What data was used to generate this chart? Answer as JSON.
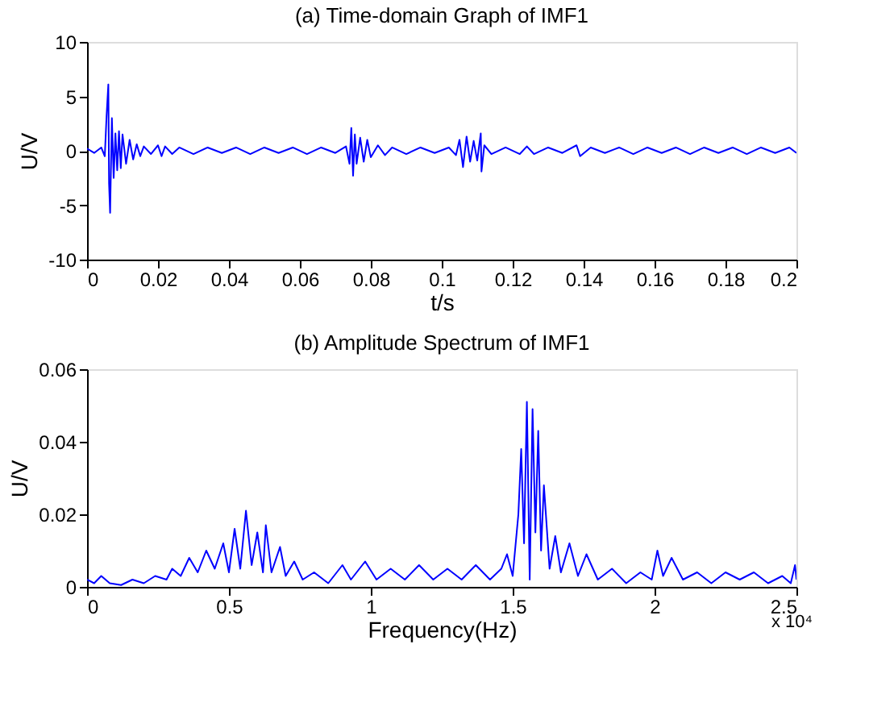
{
  "chart_data": [
    {
      "type": "line",
      "title": "(a) Time-domain Graph of IMF1",
      "xlabel": "t/s",
      "ylabel": "U/V",
      "xlim": [
        0,
        0.2
      ],
      "xticks": [
        0,
        0.02,
        0.04,
        0.06,
        0.08,
        0.1,
        0.12,
        0.14,
        0.16,
        0.18,
        0.2
      ],
      "ylim": [
        -10,
        10
      ],
      "yticks": [
        -10,
        -5,
        0,
        5,
        10
      ],
      "grid": false,
      "x": [
        0,
        0.002,
        0.004,
        0.005,
        0.0055,
        0.006,
        0.0062,
        0.0065,
        0.007,
        0.0075,
        0.008,
        0.0085,
        0.009,
        0.0095,
        0.01,
        0.011,
        0.012,
        0.013,
        0.014,
        0.015,
        0.016,
        0.018,
        0.02,
        0.021,
        0.022,
        0.024,
        0.026,
        0.03,
        0.034,
        0.038,
        0.042,
        0.046,
        0.05,
        0.054,
        0.058,
        0.062,
        0.066,
        0.07,
        0.073,
        0.074,
        0.0745,
        0.075,
        0.0755,
        0.076,
        0.077,
        0.078,
        0.079,
        0.08,
        0.082,
        0.084,
        0.086,
        0.09,
        0.094,
        0.098,
        0.102,
        0.104,
        0.105,
        0.106,
        0.107,
        0.108,
        0.109,
        0.11,
        0.111,
        0.1112,
        0.112,
        0.114,
        0.118,
        0.122,
        0.124,
        0.126,
        0.13,
        0.134,
        0.138,
        0.139,
        0.142,
        0.146,
        0.15,
        0.154,
        0.158,
        0.162,
        0.166,
        0.17,
        0.174,
        0.178,
        0.182,
        0.186,
        0.19,
        0.194,
        0.198,
        0.2
      ],
      "series": [
        {
          "color": "#0000ff",
          "values": [
            0.2,
            -0.2,
            0.3,
            -0.5,
            3.2,
            6.1,
            -3,
            -5.7,
            3,
            -2.5,
            1.6,
            -1.8,
            1.8,
            -1.6,
            1.5,
            -1.2,
            1.0,
            -0.8,
            0.6,
            -0.5,
            0.4,
            -0.3,
            0.5,
            -0.5,
            0.4,
            -0.3,
            0.3,
            -0.3,
            0.3,
            -0.2,
            0.3,
            -0.3,
            0.3,
            -0.2,
            0.3,
            -0.3,
            0.3,
            -0.2,
            0.4,
            -1.2,
            2.1,
            -2.3,
            1.5,
            -1.2,
            1.2,
            -1,
            1.0,
            -0.6,
            0.5,
            -0.4,
            0.3,
            -0.3,
            0.3,
            -0.2,
            0.3,
            -0.4,
            1.0,
            -1.5,
            1.3,
            -1.0,
            0.9,
            -0.9,
            1.6,
            -1.9,
            0.5,
            -0.3,
            0.3,
            -0.3,
            0.4,
            -0.3,
            0.3,
            -0.2,
            0.5,
            -0.5,
            0.3,
            -0.2,
            0.3,
            -0.3,
            0.3,
            -0.2,
            0.3,
            -0.3,
            0.3,
            -0.2,
            0.3,
            -0.3,
            0.3,
            -0.2,
            0.3,
            -0.2
          ]
        }
      ]
    },
    {
      "type": "line",
      "title": "(b) Amplitude Spectrum of IMF1",
      "xlabel": "Frequency(Hz)",
      "ylabel": "U/V",
      "xlim": [
        0,
        2.5
      ],
      "xticks": [
        0,
        0.5,
        1,
        1.5,
        2,
        2.5
      ],
      "ylim": [
        0,
        0.06
      ],
      "yticks": [
        0,
        0.02,
        0.04,
        0.06
      ],
      "grid": false,
      "annotations": [
        "x 10⁴"
      ],
      "x": [
        0,
        0.025,
        0.05,
        0.08,
        0.12,
        0.16,
        0.2,
        0.24,
        0.28,
        0.3,
        0.33,
        0.36,
        0.39,
        0.42,
        0.45,
        0.48,
        0.5,
        0.52,
        0.54,
        0.56,
        0.58,
        0.6,
        0.62,
        0.63,
        0.65,
        0.68,
        0.7,
        0.73,
        0.76,
        0.8,
        0.85,
        0.9,
        0.93,
        0.98,
        1.02,
        1.07,
        1.12,
        1.17,
        1.22,
        1.27,
        1.32,
        1.37,
        1.42,
        1.46,
        1.48,
        1.5,
        1.52,
        1.53,
        1.54,
        1.55,
        1.56,
        1.57,
        1.58,
        1.59,
        1.6,
        1.61,
        1.63,
        1.65,
        1.67,
        1.7,
        1.73,
        1.76,
        1.8,
        1.85,
        1.9,
        1.95,
        1.99,
        2.01,
        2.03,
        2.06,
        2.1,
        2.15,
        2.2,
        2.25,
        2.3,
        2.35,
        2.4,
        2.45,
        2.48,
        2.495,
        2.5
      ],
      "series": [
        {
          "color": "#0000ff",
          "values": [
            0.002,
            0.001,
            0.003,
            0.001,
            0.0005,
            0.002,
            0.001,
            0.003,
            0.002,
            0.005,
            0.003,
            0.008,
            0.004,
            0.01,
            0.005,
            0.012,
            0.004,
            0.016,
            0.005,
            0.021,
            0.006,
            0.015,
            0.004,
            0.017,
            0.004,
            0.011,
            0.003,
            0.007,
            0.002,
            0.004,
            0.001,
            0.006,
            0.002,
            0.007,
            0.002,
            0.005,
            0.002,
            0.006,
            0.002,
            0.005,
            0.002,
            0.006,
            0.002,
            0.005,
            0.009,
            0.003,
            0.02,
            0.038,
            0.012,
            0.051,
            0.002,
            0.049,
            0.015,
            0.043,
            0.01,
            0.028,
            0.005,
            0.014,
            0.004,
            0.012,
            0.003,
            0.009,
            0.002,
            0.005,
            0.001,
            0.004,
            0.002,
            0.01,
            0.003,
            0.008,
            0.002,
            0.004,
            0.001,
            0.004,
            0.002,
            0.004,
            0.001,
            0.003,
            0.001,
            0.006,
            0.002
          ]
        }
      ]
    }
  ]
}
